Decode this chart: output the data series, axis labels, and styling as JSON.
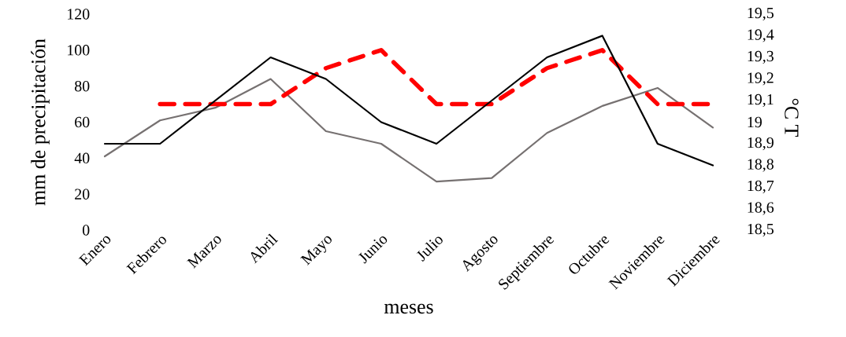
{
  "chart_data": {
    "type": "line",
    "xlabel": "meses",
    "ylabel": "mm de precipitación",
    "y2label": "°C T",
    "categories": [
      "Enero",
      "Febrero",
      "Marzo",
      "Abril",
      "Mayo",
      "Junio",
      "Julio",
      "Agosto",
      "Septiembre",
      "Octubre",
      "Noviembre",
      "Diciembre"
    ],
    "series": [
      {
        "color": "#767171",
        "line_style": "solid",
        "values": [
          41,
          61,
          68,
          84,
          55,
          48,
          27,
          29,
          54,
          69,
          79,
          57
        ]
      },
      {
        "color": "#ff0000",
        "line_style": "dashed",
        "values": [
          null,
          70,
          70,
          70,
          90,
          100,
          70,
          70,
          90,
          100,
          70,
          70
        ]
      },
      {
        "color": "#000000",
        "line_style": "solid",
        "axis": "y2",
        "values": [
          18.9,
          18.9,
          19.1,
          19.3,
          19.2,
          19.0,
          18.9,
          19.1,
          19.3,
          19.4,
          18.9,
          18.8
        ]
      }
    ],
    "ylim": [
      0,
      120
    ],
    "yticks": [
      0,
      20,
      40,
      60,
      80,
      100,
      120
    ],
    "y2lim": [
      18.5,
      19.5
    ],
    "y2ticks": [
      {
        "value": 18.5,
        "label": "18,5"
      },
      {
        "value": 18.6,
        "label": "18,6"
      },
      {
        "value": 18.7,
        "label": "18,7"
      },
      {
        "value": 18.8,
        "label": "18,8"
      },
      {
        "value": 18.9,
        "label": "18,9"
      },
      19,
      {
        "value": 19.1,
        "label": "19,1"
      },
      {
        "value": 19.2,
        "label": "19,2"
      },
      {
        "value": 19.3,
        "label": "19,3"
      },
      {
        "value": 19.4,
        "label": "19,4"
      },
      {
        "value": 19.5,
        "label": "19,5"
      }
    ],
    "grid": false,
    "legend": false,
    "marker": "none"
  }
}
